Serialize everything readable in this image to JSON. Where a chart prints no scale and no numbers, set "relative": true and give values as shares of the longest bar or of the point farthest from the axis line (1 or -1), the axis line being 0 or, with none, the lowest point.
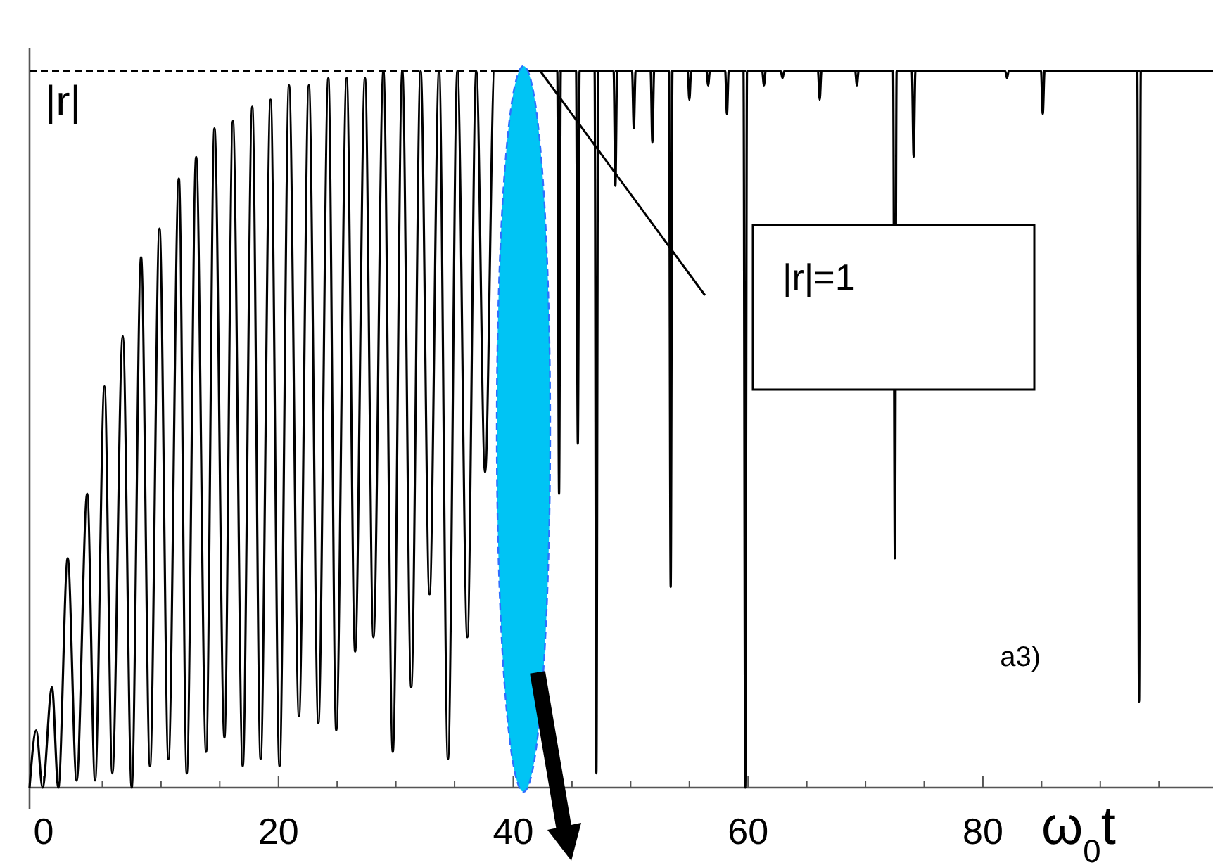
{
  "chart_data": {
    "type": "line",
    "relative": true,
    "xlabel": "ω$_{0}$t",
    "ylabel": "|r|",
    "xlim": [
      -1.2,
      99.6
    ],
    "xticks": [
      0,
      {
        "value": 5,
        "label": null
      },
      {
        "value": 10,
        "label": null
      },
      {
        "value": 15,
        "label": null
      },
      20,
      {
        "value": 25,
        "label": null
      },
      {
        "value": 30,
        "label": null
      },
      {
        "value": 35,
        "label": null
      },
      40,
      {
        "value": 45,
        "label": null
      },
      {
        "value": 50,
        "label": null
      },
      {
        "value": 55,
        "label": null
      },
      60,
      {
        "value": 65,
        "label": null
      },
      {
        "value": 70,
        "label": null
      },
      {
        "value": 75,
        "label": null
      },
      80,
      {
        "value": 85,
        "label": null
      },
      {
        "value": 90,
        "label": null
      },
      {
        "value": 95,
        "label": null
      }
    ],
    "ref_lines": [
      {
        "axis": "y",
        "value": 1,
        "label": "|r|=1",
        "line_style": "dashed"
      }
    ],
    "annotations": [
      "a3)"
    ],
    "series": [
      {
        "color": "#000000",
        "x": [
          -1.2,
          -0.63,
          -0.09,
          0.71,
          1.25,
          2.05,
          2.81,
          3.71,
          4.38,
          5.18,
          5.85,
          6.74,
          7.5,
          8.3,
          9.06,
          9.87,
          10.63,
          11.52,
          12.19,
          12.99,
          13.84,
          14.55,
          15.4,
          16.12,
          16.96,
          17.77,
          18.48,
          19.33,
          20.09,
          20.9,
          21.75,
          22.59,
          23.4,
          24.25,
          24.92,
          25.81,
          26.53,
          27.37,
          28.09,
          28.94,
          29.74,
          30.55,
          31.31,
          32.11,
          32.87,
          33.68,
          34.44,
          35.24,
          36.09,
          36.85,
          37.6,
          38.4,
          43.75,
          43.9,
          44.05,
          45.35,
          45.5,
          45.65,
          46.93,
          47.08,
          47.23,
          48.55,
          48.7,
          48.85,
          50.12,
          50.27,
          50.42,
          51.7,
          51.85,
          52.0,
          53.26,
          53.41,
          53.56,
          54.85,
          55.0,
          55.15,
          56.45,
          56.6,
          56.75,
          58.05,
          58.2,
          58.35,
          59.61,
          59.76,
          59.91,
          61.2,
          61.35,
          61.5,
          62.78,
          62.93,
          63.08,
          65.95,
          66.1,
          66.25,
          69.12,
          69.27,
          69.42,
          72.35,
          72.5,
          72.65,
          73.95,
          74.1,
          74.25,
          81.9,
          82.05,
          82.2,
          84.95,
          85.1,
          85.25,
          93.15,
          93.3,
          93.45,
          99.6
        ],
        "values": [
          0,
          0.08,
          0,
          0.14,
          0,
          0.32,
          0.01,
          0.41,
          0.01,
          0.56,
          0.02,
          0.63,
          0,
          0.74,
          0.03,
          0.78,
          0.04,
          0.85,
          0.02,
          0.88,
          0.05,
          0.92,
          0.07,
          0.93,
          0.03,
          0.95,
          0.04,
          0.96,
          0.03,
          0.98,
          0.1,
          0.98,
          0.09,
          0.99,
          0.08,
          0.99,
          0.19,
          0.99,
          0.21,
          1,
          0.05,
          1,
          0.14,
          1,
          0.27,
          1,
          0.04,
          1,
          0.21,
          1,
          0.44,
          1,
          1,
          0.41,
          1,
          1,
          0.48,
          1,
          1,
          0.02,
          1,
          1,
          0.84,
          1,
          1,
          0.92,
          1,
          1,
          0.9,
          1,
          1,
          0.28,
          1,
          1,
          0.96,
          1,
          1,
          0.98,
          1,
          1,
          0.94,
          1,
          1,
          0,
          1,
          1,
          0.98,
          1,
          1,
          0.99,
          1,
          1,
          0.96,
          1,
          1,
          0.98,
          1,
          1,
          0.32,
          1,
          1,
          0.88,
          1,
          1,
          0.99,
          1,
          1,
          0.94,
          1,
          1,
          0.12,
          1,
          1
        ]
      }
    ]
  }
}
